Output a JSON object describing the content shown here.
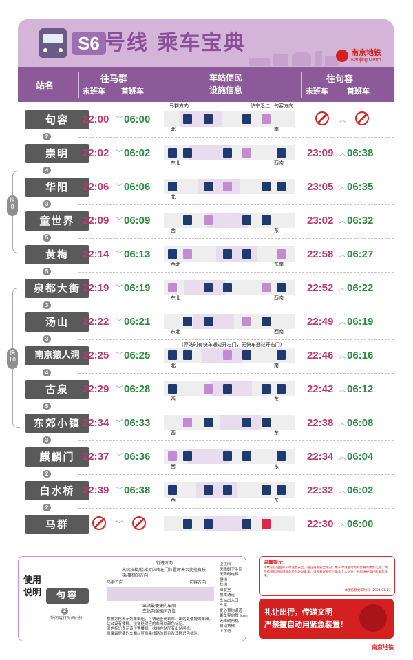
{
  "header": {
    "line_badge": "S6",
    "title": "号线 乘车宝典",
    "logo_cn": "南京地铁",
    "logo_en": "Nanjing Metro"
  },
  "columns": {
    "station": "站名",
    "to_maqun": "往马群",
    "facilities_1": "车站便民",
    "facilities_2": "设施信息",
    "to_jurong": "往句容",
    "last_train": "末班车",
    "first_train": "首班车"
  },
  "direction_labels": {
    "maqun_dir": "马群方向",
    "ningju_line": "沪宁沿江",
    "jurong_dir": "句容方向",
    "express_note": "(停站时有快车通过开左门，无快车通过开右门)"
  },
  "stations": [
    {
      "name": "句容",
      "mq_last": "22:00",
      "mq_first": "06:00",
      "jr_last": "",
      "jr_first": "",
      "jr_none": true,
      "gap": "2",
      "side_l": "北",
      "side_r": "南"
    },
    {
      "name": "崇明",
      "mq_last": "22:02",
      "mq_first": "06:02",
      "jr_last": "23:09",
      "jr_first": "06:38",
      "gap": "4",
      "side_l": "东北",
      "side_r": "西南"
    },
    {
      "name": "华阳",
      "mq_last": "22:06",
      "mq_first": "06:06",
      "jr_last": "23:05",
      "jr_first": "06:35",
      "gap": "3",
      "side_l": "北",
      "side_r": ""
    },
    {
      "name": "童世界",
      "mq_last": "22:09",
      "mq_first": "06:09",
      "jr_last": "23:02",
      "jr_first": "06:32",
      "gap": "5",
      "side_l": "西",
      "side_r": "东"
    },
    {
      "name": "黄梅",
      "mq_last": "22:14",
      "mq_first": "06:13",
      "jr_last": "22:58",
      "jr_first": "06:27",
      "gap": "5",
      "side_l": "西北",
      "side_r": "东南"
    },
    {
      "name": "泉都大街",
      "mq_last": "22:19",
      "mq_first": "06:19",
      "jr_last": "22:52",
      "jr_first": "06:22",
      "gap": "3",
      "side_l": "东北",
      "side_r": "西南"
    },
    {
      "name": "汤山",
      "mq_last": "22:22",
      "mq_first": "06:21",
      "jr_last": "22:49",
      "jr_first": "06:19",
      "gap": "3",
      "side_l": "东北",
      "side_r": "西南"
    },
    {
      "name": "南京猿人洞",
      "mq_last": "22:25",
      "mq_first": "06:25",
      "jr_last": "22:46",
      "jr_first": "06:16",
      "gap": "4",
      "side_l": "北",
      "side_r": "南"
    },
    {
      "name": "古泉",
      "mq_last": "22:29",
      "mq_first": "06:28",
      "jr_last": "22:42",
      "jr_first": "06:12",
      "gap": "5",
      "side_l": "西",
      "side_r": "东"
    },
    {
      "name": "东郊小镇",
      "mq_last": "22:34",
      "mq_first": "06:33",
      "jr_last": "22:38",
      "jr_first": "06:08",
      "gap": "3",
      "side_l": "西",
      "side_r": "东"
    },
    {
      "name": "麒麟门",
      "mq_last": "22:37",
      "mq_first": "06:36",
      "jr_last": "22:34",
      "jr_first": "06:04",
      "gap": "2",
      "side_l": "西",
      "side_r": "东"
    },
    {
      "name": "白水桥",
      "mq_last": "22:39",
      "mq_first": "06:38",
      "jr_last": "22:32",
      "jr_first": "06:02",
      "gap": "2",
      "side_l": "西",
      "side_r": "东"
    },
    {
      "name": "马群",
      "mq_last": "",
      "mq_first": "",
      "mq_none": true,
      "jr_last": "22:30",
      "jr_first": "06:00",
      "gap": "",
      "side_l": "",
      "side_r": ""
    }
  ],
  "express": [
    {
      "label": "快",
      "num": "8"
    },
    {
      "label": "快",
      "num": "10"
    }
  ],
  "legend": {
    "title": "使用说明",
    "demo_station": "句容",
    "demo_gap": "2",
    "demo_gap_label": "站间运行时间(分)",
    "dir_label": "行进方向",
    "maqun_dir": "马群方向",
    "jurong_dir": "句容方向",
    "note_top": "出站扶梯/楼梯对应所在门位置时表示此处有扶梯/楼梯的方向",
    "note_mid": "出站最便捷的车厢",
    "note_mid2": "车站两端朝向方位",
    "notes": [
      "横排方格表示列车编组，可快速查询乘车、出站最便捷的车厢。",
      "站台设有楼梯、扶梯处对应的车厢以颜色标记。",
      "深色标记表示该位置楼梯、扶梯在站厅有出站闸机。",
      "换乘最便捷的车厢以可换乘线路的颜色及其标识色标注。"
    ],
    "keys": [
      "卫生间",
      "无障碍卫生间",
      "无障碍电梯",
      "楼梯",
      "扶梯",
      "母婴室",
      "换乘通道",
      "车站出入口",
      "车尾",
      "爱心预约通道",
      "乘车导向牌 Icon",
      "无障碍闸机",
      "自动扶梯",
      "上下行"
    ]
  },
  "notice": {
    "head": "温馨提示:",
    "body": "请乘客在站台候车时注意安全，站在黄色安全线内；乘车时请主动为有需要的乘客让座；请勿携带易燃易爆等危险品进站乘车；请照看好随行儿童及个人财物，共同维护良好的乘车秩序。",
    "date": "本图信息更新时间：2024.01.17"
  },
  "warning": {
    "line1": "礼让出行，传递文明",
    "line2": "严禁擅自动用紧急装置!"
  },
  "footer_logo": "南京地铁"
}
